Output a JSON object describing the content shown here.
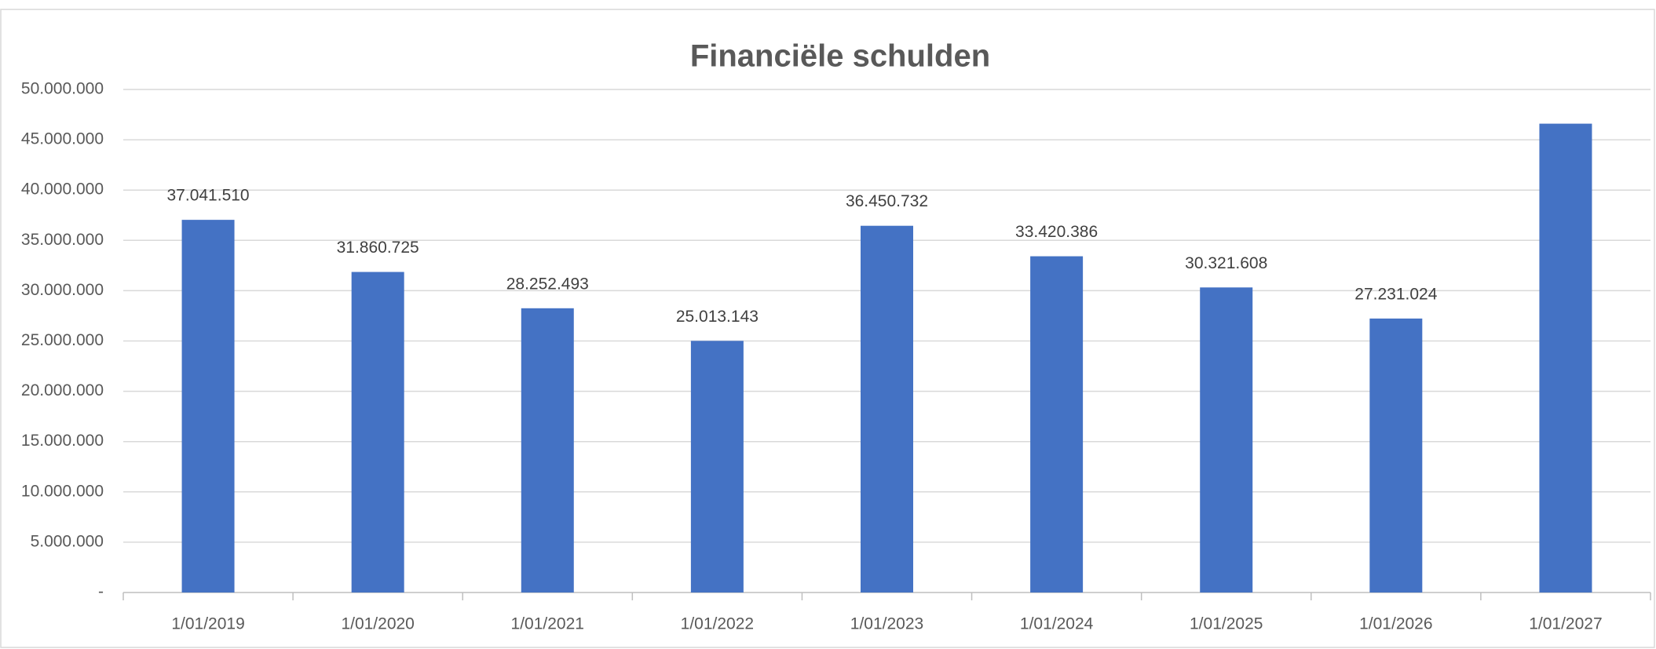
{
  "chart_data": {
    "type": "bar",
    "title": "Financiële schulden",
    "categories": [
      "1/01/2019",
      "1/01/2020",
      "1/01/2021",
      "1/01/2022",
      "1/01/2023",
      "1/01/2024",
      "1/01/2025",
      "1/01/2026",
      "1/01/2027"
    ],
    "values": [
      37041510,
      31860725,
      28252493,
      25013143,
      36450732,
      33420386,
      30321608,
      27231024,
      46600000
    ],
    "value_labels": [
      "37.041.510",
      "31.860.725",
      "28.252.493",
      "25.013.143",
      "36.450.732",
      "33.420.386",
      "30.321.608",
      "27.231.024",
      null
    ],
    "color": "#4472c4",
    "ylim": [
      0,
      50000000
    ],
    "yticks": [
      {
        "value": 0,
        "label": "-"
      },
      {
        "value": 5000000,
        "label": "5.000.000"
      },
      {
        "value": 10000000,
        "label": "10.000.000"
      },
      {
        "value": 15000000,
        "label": "15.000.000"
      },
      {
        "value": 20000000,
        "label": "20.000.000"
      },
      {
        "value": 25000000,
        "label": "25.000.000"
      },
      {
        "value": 30000000,
        "label": "30.000.000"
      },
      {
        "value": 35000000,
        "label": "35.000.000"
      },
      {
        "value": 40000000,
        "label": "40.000.000"
      },
      {
        "value": 45000000,
        "label": "45.000.000"
      },
      {
        "value": 50000000,
        "label": "50.000.000"
      }
    ],
    "grid": true
  }
}
